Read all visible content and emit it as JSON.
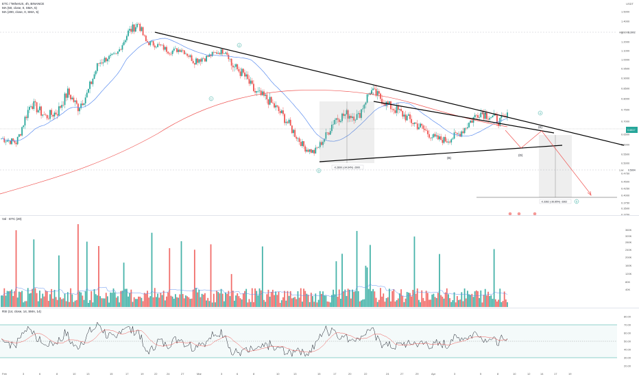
{
  "chart_data": {
    "type": "candlestick",
    "symbol_title": "ETC / TetherUS, 4h, BINANCE",
    "indicators": [
      "MA (50, close, 0, SMA, 5)",
      "MA (200, close, 0, SMA, 5)"
    ],
    "currency": "USDT",
    "price_axis_ticks": [
      "1.5000",
      "1.4000",
      "1.3000",
      "1.2000",
      "1.1000",
      "1.0000",
      "0.9500",
      "0.9000",
      "0.8500",
      "0.8000",
      "0.7500",
      "0.7000",
      "0.6500",
      "0.6000",
      "0.5500",
      "0.5000",
      "0.4750",
      "0.4500",
      "0.4250",
      "0.4000",
      "0.3750",
      "0.3500",
      "0.3250"
    ],
    "price_axis_values": [
      1.5,
      1.4,
      1.3,
      1.2,
      1.1,
      1.0,
      0.95,
      0.9,
      0.85,
      0.8,
      0.75,
      0.7,
      0.65,
      0.6,
      0.55,
      0.5,
      0.475,
      0.45,
      0.425,
      0.4,
      0.375,
      0.35,
      0.325
    ],
    "price_labels": {
      "high_label": "High",
      "high_value": "1.3902",
      "low_label": "Low",
      "low_value": "0.5004",
      "last_value": "0.6817"
    },
    "x_axis_ticks": [
      "Feb",
      "3",
      "6",
      "8",
      "10",
      "13",
      "15",
      "17",
      "19",
      "22",
      "24",
      "27",
      "Mar",
      "3",
      "6",
      "8",
      "10",
      "13",
      "15",
      "17",
      "20",
      "22",
      "24",
      "27",
      "29",
      "Apr",
      "3",
      "5",
      "8",
      "10",
      "12",
      "14",
      "17",
      "19"
    ],
    "wave_labels": [
      "1",
      "2",
      "3",
      "4",
      "5",
      "A",
      "B",
      "C",
      "D",
      "E"
    ],
    "measure_1": "-0.2899 (-34.64%) -2900",
    "measure_2": "-0.3362 (-36.85%) -3362",
    "volume": {
      "title": "Vol · ETC (20)",
      "axis_ticks": [
        "360K",
        "320K",
        "280K",
        "240K",
        "200K",
        "160K",
        "120K",
        "80K",
        "40K"
      ]
    },
    "rsi": {
      "title": "RSI (14, close, 14, SMA, 14)",
      "axis_ticks": [
        "80.00",
        "70.00",
        "60.00",
        "50.00",
        "40.00",
        "30.00",
        "20.00"
      ],
      "upper_band": 70,
      "lower_band": 30,
      "mid_band": 50
    },
    "colors": {
      "up": "#26a69a",
      "down": "#ef5350",
      "ma50": "#5b8def",
      "ma200": "#ef5350",
      "trendline": "#000000",
      "wave": "#26a69a"
    }
  }
}
